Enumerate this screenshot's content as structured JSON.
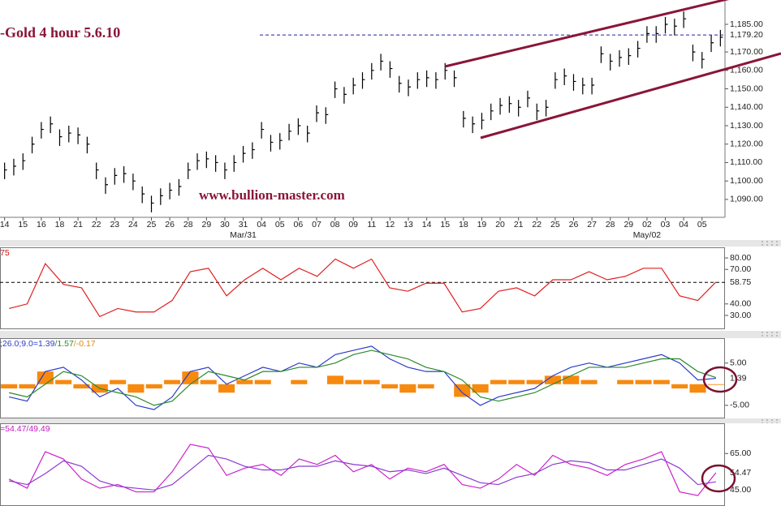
{
  "chart_data": [
    {
      "type": "ohlc",
      "title": "-Gold 4 hour 5.6.10",
      "annotation": "www.bullion-master.com",
      "color": "#000000",
      "high": [
        1110,
        1112,
        1115,
        1124,
        1132,
        1135,
        1128,
        1130,
        1129,
        1124,
        1110,
        1102,
        1107,
        1108,
        1104,
        1097,
        1092,
        1096,
        1099,
        1101,
        1110,
        1115,
        1116,
        1114,
        1110,
        1114,
        1119,
        1121,
        1132,
        1125,
        1126,
        1131,
        1134,
        1130,
        1141,
        1140,
        1154,
        1151,
        1156,
        1159,
        1164,
        1169,
        1165,
        1157,
        1155,
        1159,
        1160,
        1159,
        1164,
        1160,
        1138,
        1135,
        1137,
        1142,
        1145,
        1146,
        1144,
        1149,
        1142,
        1144,
        1159,
        1161,
        1158,
        1156,
        1156,
        1173,
        1169,
        1171,
        1172,
        1176,
        1184,
        1184,
        1189,
        1188,
        1192,
        1174,
        1170,
        1179,
        1182
      ],
      "low": [
        1101,
        1103,
        1106,
        1115,
        1123,
        1126,
        1119,
        1121,
        1120,
        1115,
        1101,
        1093,
        1098,
        1099,
        1095,
        1088,
        1083,
        1087,
        1090,
        1092,
        1101,
        1106,
        1107,
        1105,
        1101,
        1105,
        1110,
        1112,
        1123,
        1116,
        1117,
        1122,
        1125,
        1121,
        1132,
        1131,
        1145,
        1142,
        1147,
        1150,
        1155,
        1160,
        1156,
        1148,
        1146,
        1150,
        1151,
        1150,
        1155,
        1151,
        1129,
        1126,
        1128,
        1133,
        1136,
        1137,
        1135,
        1140,
        1133,
        1135,
        1150,
        1152,
        1149,
        1147,
        1147,
        1164,
        1160,
        1162,
        1163,
        1167,
        1175,
        1175,
        1180,
        1179,
        1183,
        1165,
        1161,
        1170,
        1173
      ],
      "close": [
        1106,
        1108,
        1111,
        1120,
        1128,
        1131,
        1124,
        1126,
        1125,
        1120,
        1106,
        1098,
        1103,
        1104,
        1100,
        1093,
        1088,
        1092,
        1095,
        1097,
        1106,
        1111,
        1112,
        1110,
        1106,
        1110,
        1115,
        1117,
        1128,
        1121,
        1122,
        1127,
        1130,
        1126,
        1137,
        1136,
        1150,
        1147,
        1152,
        1155,
        1160,
        1165,
        1161,
        1153,
        1151,
        1155,
        1156,
        1155,
        1160,
        1156,
        1134,
        1131,
        1133,
        1138,
        1141,
        1142,
        1140,
        1145,
        1138,
        1140,
        1155,
        1157,
        1154,
        1152,
        1152,
        1169,
        1165,
        1167,
        1168,
        1172,
        1180,
        1180,
        1185,
        1184,
        1188,
        1170,
        1166,
        1175,
        1178
      ],
      "xlim": [
        -0.5,
        78.5
      ],
      "xticks": [
        {
          "value": 0,
          "label": "14"
        },
        {
          "value": 2,
          "label": "15"
        },
        {
          "value": 4,
          "label": "16"
        },
        {
          "value": 6,
          "label": "18"
        },
        {
          "value": 8,
          "label": "21"
        },
        {
          "value": 10,
          "label": "22"
        },
        {
          "value": 12,
          "label": "23"
        },
        {
          "value": 14,
          "label": "24"
        },
        {
          "value": 16,
          "label": "25"
        },
        {
          "value": 18,
          "label": "26"
        },
        {
          "value": 20,
          "label": "28"
        },
        {
          "value": 22,
          "label": "29"
        },
        {
          "value": 24,
          "label": "30"
        },
        {
          "value": 26,
          "label": "31"
        },
        {
          "value": 28,
          "label": "04"
        },
        {
          "value": 30,
          "label": "05"
        },
        {
          "value": 32,
          "label": "06"
        },
        {
          "value": 34,
          "label": "07"
        },
        {
          "value": 36,
          "label": "08"
        },
        {
          "value": 38,
          "label": "09"
        },
        {
          "value": 40,
          "label": "11"
        },
        {
          "value": 42,
          "label": "12"
        },
        {
          "value": 44,
          "label": "13"
        },
        {
          "value": 46,
          "label": "14"
        },
        {
          "value": 48,
          "label": "15"
        },
        {
          "value": 50,
          "label": "18"
        },
        {
          "value": 52,
          "label": "19"
        },
        {
          "value": 54,
          "label": "20"
        },
        {
          "value": 56,
          "label": "21"
        },
        {
          "value": 58,
          "label": "22"
        },
        {
          "value": 60,
          "label": "25"
        },
        {
          "value": 62,
          "label": "26"
        },
        {
          "value": 64,
          "label": "27"
        },
        {
          "value": 66,
          "label": "28"
        },
        {
          "value": 68,
          "label": "29"
        },
        {
          "value": 70,
          "label": "02"
        },
        {
          "value": 72,
          "label": "03"
        },
        {
          "value": 74,
          "label": "04"
        },
        {
          "value": 76,
          "label": "05"
        }
      ],
      "period_labels": [
        {
          "value": 26,
          "label": "Mar/31"
        },
        {
          "value": 70,
          "label": "May/02"
        }
      ],
      "ylim": [
        1081.6,
        1198.2
      ],
      "yticks": [
        {
          "value": 1090,
          "label": "1,090.00"
        },
        {
          "value": 1100,
          "label": "1,100.00"
        },
        {
          "value": 1110,
          "label": "1,110.00"
        },
        {
          "value": 1120,
          "label": "1,120.00"
        },
        {
          "value": 1130,
          "label": "1,130.00"
        },
        {
          "value": 1140,
          "label": "1,140.00"
        },
        {
          "value": 1150,
          "label": "1,150.00"
        },
        {
          "value": 1160,
          "label": "1,160.00"
        },
        {
          "value": 1170,
          "label": "1,170.00"
        },
        {
          "value": 1185,
          "label": "1,185.00"
        }
      ],
      "reference": {
        "value": 1179.2,
        "label": "1,179.20",
        "color": "#2020a0"
      }
    },
    {
      "type": "line",
      "header": [
        {
          "text": "75",
          "color": "#d01010"
        }
      ],
      "xlim": [
        -0.5,
        39.5
      ],
      "ylim": [
        18.7,
        88.5
      ],
      "yticks": [
        {
          "value": 30,
          "label": "30.00"
        },
        {
          "value": 40,
          "label": "40.00"
        },
        {
          "value": 70,
          "label": "70.00"
        },
        {
          "value": 80,
          "label": "80.00"
        }
      ],
      "reference": {
        "value": 58.75,
        "color": "#2020a0"
      },
      "series": [
        {
          "color": "#e02020",
          "values": [
            36,
            40,
            75,
            57,
            54,
            29,
            36,
            33,
            33,
            43,
            68,
            71,
            47,
            61,
            71,
            61,
            71,
            64,
            79,
            71,
            79,
            54,
            51,
            58,
            58,
            33,
            36,
            51,
            54,
            47,
            61,
            61,
            68,
            61,
            64,
            71,
            71,
            47,
            43,
            59
          ]
        }
      ]
    },
    {
      "type": "line",
      "header": [
        {
          "text": ";26.0;9.0=1.39",
          "color": "#2c3cc8"
        },
        {
          "text": "/1.57",
          "color": "#2a8a2a"
        },
        {
          "text": "/-0.17",
          "color": "#e08a00"
        }
      ],
      "xlim": [
        -0.5,
        39.5
      ],
      "ylim": [
        -7.9,
        10.7
      ],
      "yticks": [
        {
          "value": -5,
          "label": "-5.00"
        },
        {
          "value": 5,
          "label": "5.00"
        }
      ],
      "series": [
        {
          "type": "bar",
          "color": "#f7890f",
          "values": [
            -1,
            -1,
            3,
            1,
            -1,
            -2,
            1,
            -2,
            -1,
            1,
            3,
            1,
            -2,
            1,
            1,
            0,
            1,
            0,
            2,
            1,
            1,
            -1,
            -2,
            -1,
            0,
            -3,
            -2,
            1,
            1,
            1,
            2,
            2,
            1,
            0,
            1,
            1,
            1,
            -1,
            -2,
            -0.17
          ]
        },
        {
          "color": "#2c3cc8",
          "values": [
            -3,
            -4,
            3,
            4,
            1,
            -3,
            -1,
            -5,
            -6,
            -3,
            3,
            4,
            0,
            2,
            4,
            3,
            5,
            4,
            7,
            8,
            9,
            6,
            4,
            3,
            3,
            -2,
            -5,
            -3,
            -2,
            -1,
            2,
            4,
            5,
            4,
            5,
            6,
            7,
            5,
            1,
            1.39
          ],
          "last_label": true
        },
        {
          "color": "#2a8a2a",
          "values": [
            -2,
            -3,
            0,
            3,
            2,
            -1,
            -2,
            -3,
            -5,
            -4,
            0,
            3,
            2,
            1,
            3,
            3,
            4,
            4,
            5,
            7,
            8,
            7,
            6,
            4,
            3,
            1,
            -3,
            -4,
            -3,
            -2,
            0,
            2,
            4,
            4,
            4,
            5,
            6,
            6,
            3,
            1.57
          ]
        }
      ]
    },
    {
      "type": "line",
      "header": [
        {
          "text": "=54.47/49.49",
          "color": "#c020c0"
        }
      ],
      "xlim": [
        -0.5,
        39.5
      ],
      "ylim": [
        36.7,
        81.1
      ],
      "yticks": [
        {
          "value": 45,
          "label": "45.00"
        },
        {
          "value": 65,
          "label": "65.00"
        }
      ],
      "series": [
        {
          "color": "#cc22cc",
          "values": [
            51,
            46,
            66,
            62,
            51,
            46,
            48,
            44,
            44,
            55,
            70,
            68,
            53,
            57,
            59,
            53,
            62,
            59,
            64,
            55,
            59,
            51,
            57,
            55,
            59,
            48,
            46,
            51,
            59,
            53,
            64,
            59,
            57,
            53,
            59,
            62,
            66,
            44,
            42,
            54.47
          ],
          "last_label": true
        },
        {
          "color": "#8a3ad0",
          "values": [
            50,
            48,
            54,
            61,
            58,
            50,
            47,
            46,
            45,
            48,
            56,
            64,
            62,
            58,
            56,
            56,
            58,
            58,
            61,
            59,
            58,
            55,
            56,
            54,
            57,
            53,
            49,
            48,
            52,
            54,
            59,
            61,
            60,
            56,
            56,
            59,
            62,
            57,
            48,
            49.49
          ]
        }
      ]
    }
  ]
}
